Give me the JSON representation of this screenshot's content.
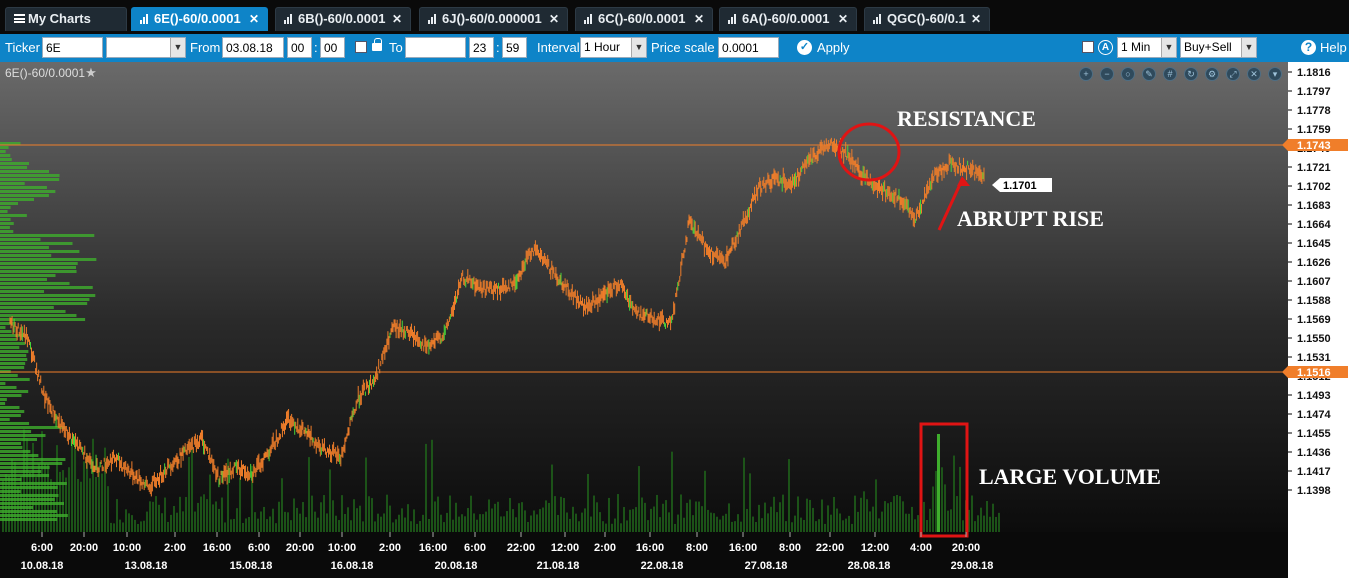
{
  "tabs": [
    {
      "label": "My Charts",
      "kind": "menu",
      "active": false,
      "closable": false
    },
    {
      "label": "6E()-60/0.0001",
      "kind": "chart",
      "active": true,
      "closable": true
    },
    {
      "label": "6B()-60/0.0001",
      "kind": "chart",
      "active": false,
      "closable": true
    },
    {
      "label": "6J()-60/0.000001",
      "kind": "chart",
      "active": false,
      "closable": true
    },
    {
      "label": "6C()-60/0.0001",
      "kind": "chart",
      "active": false,
      "closable": true
    },
    {
      "label": "6A()-60/0.0001",
      "kind": "chart",
      "active": false,
      "closable": true
    },
    {
      "label": "QGC()-60/0.1",
      "kind": "chart",
      "active": false,
      "closable": true
    }
  ],
  "toolbar": {
    "ticker_label": "Ticker",
    "ticker_value": "6E",
    "ticker_dropdown_value": "",
    "from_label": "From",
    "from_date": "03.08.18",
    "from_hour": "00",
    "from_minute": "00",
    "to_label": "To",
    "to_date": "",
    "to_hour": "23",
    "to_minute": "59",
    "time_separator": ":",
    "interval_label": "Interval",
    "interval_value": "1 Hour",
    "price_scale_label": "Price scale",
    "price_scale_value": "0.0001",
    "apply_label": "Apply",
    "timeframe_value": "1 Min",
    "side_value": "Buy+Sell",
    "help_label": "Help"
  },
  "chart_title": "6E()-60/0.0001",
  "chart_controls": [
    "zoom-in-icon",
    "zoom-out-icon",
    "zoom-reset-icon",
    "draw-icon",
    "grid-icon",
    "refresh-icon",
    "settings-icon",
    "expand-icon",
    "close-icon",
    "dropdown-icon"
  ],
  "annotations": {
    "resistance": "RESISTANCE",
    "abrupt_rise": "ABRUPT RISE",
    "large_volume": "LARGE VOLUME"
  },
  "colors": {
    "accent": "#0e84c8",
    "candles": "#f07e2a",
    "volume": "#3fae2d",
    "level_line": "#f07e2a",
    "annotation": "#e01414"
  },
  "chart_data": {
    "type": "candlestick",
    "price_axis_ticks": [
      "1.1816",
      "1.1797",
      "1.1778",
      "1.1759",
      "1.1740",
      "1.1721",
      "1.1702",
      "1.1683",
      "1.1664",
      "1.1645",
      "1.1626",
      "1.1607",
      "1.1588",
      "1.1569",
      "1.1550",
      "1.1531",
      "1.1512",
      "1.1493",
      "1.1474",
      "1.1455",
      "1.1436",
      "1.1417",
      "1.1398"
    ],
    "ylim": [
      1.1385,
      1.1825
    ],
    "time_axis_labels": [
      "6:00",
      "20:00",
      "10:00",
      "2:00",
      "16:00",
      "6:00",
      "20:00",
      "10:00",
      "2:00",
      "16:00",
      "6:00",
      "22:00",
      "12:00",
      "2:00",
      "16:00",
      "8:00",
      "16:00",
      "8:00",
      "22:00",
      "12:00",
      "4:00",
      "20:00"
    ],
    "date_axis_labels": [
      "10.08.18",
      "13.08.18",
      "15.08.18",
      "16.08.18",
      "20.08.18",
      "21.08.18",
      "22.08.18",
      "27.08.18",
      "28.08.18",
      "29.08.18"
    ],
    "levels": [
      {
        "label": "1.1743",
        "value": 1.1743
      },
      {
        "label": "1.1516",
        "value": 1.1516
      }
    ],
    "last_price": {
      "label": "1.1701",
      "value": 1.1701
    },
    "price_path": [
      1.1565,
      1.155,
      1.149,
      1.146,
      1.144,
      1.142,
      1.143,
      1.1415,
      1.14,
      1.142,
      1.1435,
      1.145,
      1.141,
      1.142,
      1.1415,
      1.144,
      1.147,
      1.1455,
      1.144,
      1.143,
      1.149,
      1.151,
      1.156,
      1.1555,
      1.154,
      1.1555,
      1.161,
      1.16,
      1.1598,
      1.1605,
      1.164,
      1.162,
      1.16,
      1.158,
      1.159,
      1.1605,
      1.1575,
      1.157,
      1.1565,
      1.1665,
      1.164,
      1.1625,
      1.166,
      1.17,
      1.171,
      1.1705,
      1.173,
      1.1745,
      1.1735,
      1.1712,
      1.17,
      1.169,
      1.167,
      1.171,
      1.1725,
      1.172,
      1.1712
    ],
    "volume_profile": "green horizontal volume-at-price histogram on the left edge",
    "volume_bars": "green vertical volume histogram along the bottom, largest spike near 29.08.18 04:00"
  }
}
